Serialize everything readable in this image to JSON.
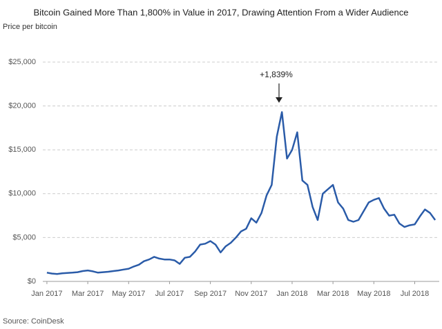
{
  "chart_data": {
    "type": "line",
    "title": "Bitcoin Gained More Than 1,800% in Value in 2017, Drawing Attention From a Wider Audience",
    "subtitle": "Price per bitcoin",
    "source": "Source: CoinDesk",
    "annotation": "+1,839%",
    "x": [
      0,
      0.25,
      0.5,
      0.75,
      1,
      1.25,
      1.5,
      1.75,
      2,
      2.25,
      2.5,
      2.75,
      3,
      3.25,
      3.5,
      3.75,
      4,
      4.25,
      4.5,
      4.75,
      5,
      5.25,
      5.5,
      5.75,
      6,
      6.25,
      6.5,
      6.75,
      7,
      7.25,
      7.5,
      7.75,
      8,
      8.25,
      8.5,
      8.75,
      9,
      9.25,
      9.5,
      9.75,
      10,
      10.25,
      10.5,
      10.75,
      11,
      11.25,
      11.5,
      11.75,
      12,
      12.25,
      12.5,
      12.75,
      13,
      13.25,
      13.5,
      13.75,
      14,
      14.25,
      14.5,
      14.75,
      15,
      15.25,
      15.5,
      15.75,
      16,
      16.25,
      16.5,
      16.75,
      17,
      17.25,
      17.5,
      17.75,
      18,
      18.25,
      18.5,
      18.75,
      19
    ],
    "series": [
      {
        "name": "Bitcoin price",
        "color": "#2a5ba8",
        "values": [
          1000,
          900,
          850,
          920,
          970,
          1000,
          1050,
          1180,
          1250,
          1150,
          1000,
          1050,
          1100,
          1180,
          1250,
          1350,
          1450,
          1700,
          1900,
          2300,
          2500,
          2800,
          2600,
          2500,
          2500,
          2400,
          2000,
          2700,
          2800,
          3400,
          4200,
          4300,
          4600,
          4200,
          3300,
          4000,
          4400,
          5000,
          5700,
          6000,
          7200,
          6700,
          7800,
          9800,
          11000,
          16500,
          19300,
          14000,
          15000,
          17000,
          11500,
          11000,
          8500,
          7000,
          10000,
          10500,
          11000,
          9000,
          8300,
          7000,
          6800,
          7000,
          8000,
          9000,
          9300,
          9500,
          8300,
          7500,
          7600,
          6600,
          6200,
          6400,
          6500,
          7400,
          8200,
          7800,
          7000
        ]
      }
    ],
    "xlim": [
      -0.2,
      19.2
    ],
    "xticks": [
      {
        "value": 0,
        "label": "Jan 2017"
      },
      {
        "value": 2,
        "label": "Mar 2017"
      },
      {
        "value": 4,
        "label": "May 2017"
      },
      {
        "value": 6,
        "label": "Jul 2017"
      },
      {
        "value": 8,
        "label": "Sep 2017"
      },
      {
        "value": 10,
        "label": "Nov 2017"
      },
      {
        "value": 12,
        "label": "Jan 2018"
      },
      {
        "value": 14,
        "label": "Mar 2018"
      },
      {
        "value": 16,
        "label": "May 2018"
      },
      {
        "value": 18,
        "label": "Jul 2018"
      }
    ],
    "ylim": [
      0,
      25000
    ],
    "yticks": [
      {
        "value": 0,
        "label": "$0"
      },
      {
        "value": 5000,
        "label": "$5,000"
      },
      {
        "value": 10000,
        "label": "$10,000"
      },
      {
        "value": 15000,
        "label": "$15,000"
      },
      {
        "value": 20000,
        "label": "$20,000"
      },
      {
        "value": 25000,
        "label": "$25,000"
      }
    ],
    "grid": true
  }
}
